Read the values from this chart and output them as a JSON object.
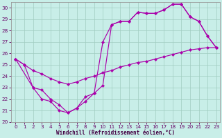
{
  "xlabel": "Windchill (Refroidissement éolien,°C)",
  "background_color": "#c8eee8",
  "grid_color": "#a0ccc0",
  "line_color": "#aa00aa",
  "xlim_min": -0.5,
  "xlim_max": 23.4,
  "ylim_min": 20.0,
  "ylim_max": 30.5,
  "yticks": [
    20,
    21,
    22,
    23,
    24,
    25,
    26,
    27,
    28,
    29,
    30
  ],
  "xticks": [
    0,
    1,
    2,
    3,
    4,
    5,
    6,
    7,
    8,
    9,
    10,
    11,
    12,
    13,
    14,
    15,
    16,
    17,
    18,
    19,
    20,
    21,
    22,
    23
  ],
  "series1_x": [
    0,
    1,
    2,
    3,
    4,
    5,
    6,
    7,
    8,
    9,
    10,
    11,
    12,
    13,
    14,
    15,
    16,
    17,
    18,
    19,
    20,
    21,
    22,
    23
  ],
  "series1_y": [
    25.5,
    25.0,
    24.5,
    24.2,
    23.8,
    23.5,
    23.3,
    23.5,
    23.8,
    24.0,
    24.3,
    24.5,
    24.8,
    25.0,
    25.2,
    25.3,
    25.5,
    25.7,
    25.9,
    26.1,
    26.3,
    26.4,
    26.5,
    26.5
  ],
  "series2_x": [
    0,
    1,
    2,
    3,
    4,
    5,
    6,
    7,
    8,
    9,
    10,
    11,
    12,
    13,
    14,
    15,
    16,
    17,
    18,
    19,
    20,
    21,
    22,
    23
  ],
  "series2_y": [
    25.5,
    25.0,
    23.0,
    22.0,
    21.8,
    21.0,
    20.8,
    21.2,
    22.2,
    22.5,
    23.2,
    28.5,
    28.8,
    28.8,
    29.6,
    29.5,
    29.5,
    29.8,
    30.3,
    30.3,
    29.2,
    28.8,
    27.5,
    26.5
  ],
  "series3_x": [
    0,
    2,
    3,
    4,
    5,
    6,
    7,
    8,
    9,
    10,
    11,
    12,
    13,
    14,
    15,
    16,
    17,
    18,
    19,
    20,
    21,
    22,
    23
  ],
  "series3_y": [
    25.5,
    23.0,
    22.8,
    22.0,
    21.5,
    20.8,
    21.2,
    21.8,
    22.5,
    27.0,
    28.5,
    28.8,
    28.8,
    29.6,
    29.5,
    29.5,
    29.8,
    30.3,
    30.3,
    29.2,
    28.8,
    27.5,
    26.5
  ]
}
